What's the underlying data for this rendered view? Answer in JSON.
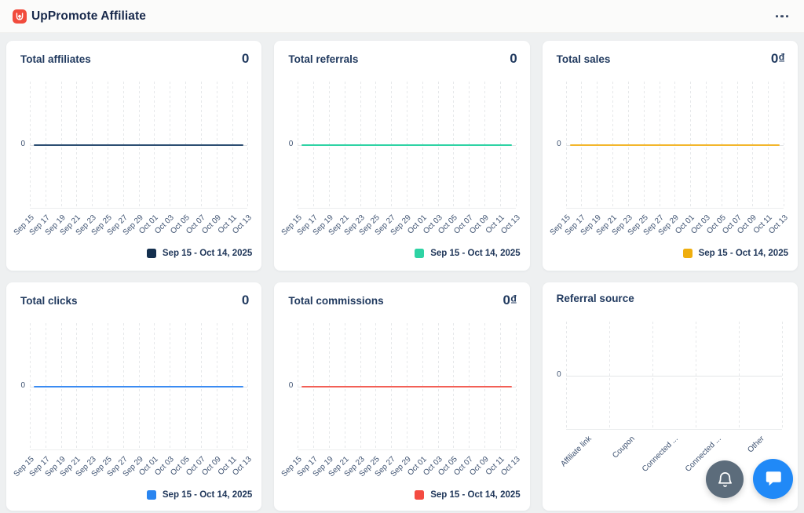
{
  "header": {
    "app_title": "UpPromote Affiliate",
    "logo_icon": "uppromote-logo",
    "logo_color": "#f14b3c",
    "menu_icon": "ellipsis-icon"
  },
  "cards": [
    {
      "title": "Total affiliates",
      "value": "0"
    },
    {
      "title": "Total referrals",
      "value": "0"
    },
    {
      "title": "Total sales",
      "value": "0₫"
    },
    {
      "title": "Total clicks",
      "value": "0"
    },
    {
      "title": "Total commissions",
      "value": "0₫"
    },
    {
      "title": "Referral source",
      "value": ""
    }
  ],
  "chart_data": [
    {
      "type": "line",
      "title": "Total affiliates",
      "x": [
        "Sep 15",
        "Sep 17",
        "Sep 19",
        "Sep 21",
        "Sep 23",
        "Sep 25",
        "Sep 27",
        "Sep 29",
        "Oct 01",
        "Oct 03",
        "Oct 05",
        "Oct 07",
        "Oct 09",
        "Oct 11",
        "Oct 13"
      ],
      "series": [
        {
          "name": "Sep 15 - Oct 14, 2025",
          "values": [
            0,
            0,
            0,
            0,
            0,
            0,
            0,
            0,
            0,
            0,
            0,
            0,
            0,
            0,
            0
          ]
        }
      ],
      "color": "#2c4e72",
      "swatch_color": "#142f4e",
      "y_ticks": [
        "0"
      ],
      "ylim": [
        -1,
        1
      ],
      "grid": "vertical-dashed",
      "legend_position": "bottom-right"
    },
    {
      "type": "line",
      "title": "Total referrals",
      "x": [
        "Sep 15",
        "Sep 17",
        "Sep 19",
        "Sep 21",
        "Sep 23",
        "Sep 25",
        "Sep 27",
        "Sep 29",
        "Oct 01",
        "Oct 03",
        "Oct 05",
        "Oct 07",
        "Oct 09",
        "Oct 11",
        "Oct 13"
      ],
      "series": [
        {
          "name": "Sep 15 - Oct 14, 2025",
          "values": [
            0,
            0,
            0,
            0,
            0,
            0,
            0,
            0,
            0,
            0,
            0,
            0,
            0,
            0,
            0
          ]
        }
      ],
      "color": "#2ed3a4",
      "swatch_color": "#2ed3a4",
      "y_ticks": [
        "0"
      ],
      "ylim": [
        -1,
        1
      ],
      "grid": "vertical-dashed",
      "legend_position": "bottom-right"
    },
    {
      "type": "line",
      "title": "Total sales",
      "x": [
        "Sep 15",
        "Sep 17",
        "Sep 19",
        "Sep 21",
        "Sep 23",
        "Sep 25",
        "Sep 27",
        "Sep 29",
        "Oct 01",
        "Oct 03",
        "Oct 05",
        "Oct 07",
        "Oct 09",
        "Oct 11",
        "Oct 13"
      ],
      "series": [
        {
          "name": "Sep 15 - Oct 14, 2025",
          "values": [
            0,
            0,
            0,
            0,
            0,
            0,
            0,
            0,
            0,
            0,
            0,
            0,
            0,
            0,
            0
          ]
        }
      ],
      "color": "#f3b62c",
      "swatch_color": "#efae0e",
      "y_ticks": [
        "0"
      ],
      "ylim": [
        -1,
        1
      ],
      "grid": "vertical-dashed",
      "legend_position": "bottom-right"
    },
    {
      "type": "line",
      "title": "Total clicks",
      "x": [
        "Sep 15",
        "Sep 17",
        "Sep 19",
        "Sep 21",
        "Sep 23",
        "Sep 25",
        "Sep 27",
        "Sep 29",
        "Oct 01",
        "Oct 03",
        "Oct 05",
        "Oct 07",
        "Oct 09",
        "Oct 11",
        "Oct 13"
      ],
      "series": [
        {
          "name": "Sep 15 - Oct 14, 2025",
          "values": [
            0,
            0,
            0,
            0,
            0,
            0,
            0,
            0,
            0,
            0,
            0,
            0,
            0,
            0,
            0
          ]
        }
      ],
      "color": "#3a8bf2",
      "swatch_color": "#2a85f0",
      "y_ticks": [
        "0"
      ],
      "ylim": [
        -1,
        1
      ],
      "grid": "vertical-dashed",
      "legend_position": "bottom-right"
    },
    {
      "type": "line",
      "title": "Total commissions",
      "x": [
        "Sep 15",
        "Sep 17",
        "Sep 19",
        "Sep 21",
        "Sep 23",
        "Sep 25",
        "Sep 27",
        "Sep 29",
        "Oct 01",
        "Oct 03",
        "Oct 05",
        "Oct 07",
        "Oct 09",
        "Oct 11",
        "Oct 13"
      ],
      "series": [
        {
          "name": "Sep 15 - Oct 14, 2025",
          "values": [
            0,
            0,
            0,
            0,
            0,
            0,
            0,
            0,
            0,
            0,
            0,
            0,
            0,
            0,
            0
          ]
        }
      ],
      "color": "#f25f56",
      "swatch_color": "#f44b41",
      "y_ticks": [
        "0"
      ],
      "ylim": [
        -1,
        1
      ],
      "grid": "vertical-dashed",
      "legend_position": "bottom-right"
    },
    {
      "type": "bar",
      "title": "Referral source",
      "categories": [
        "Affiliate link",
        "Coupon",
        "Connected ...",
        "Connected ...",
        "Other"
      ],
      "values": [
        0,
        0,
        0,
        0,
        0
      ],
      "y_ticks": [
        "0"
      ],
      "ylim": [
        -1,
        1
      ],
      "grid": "vertical-dashed",
      "legend_position": "none"
    }
  ],
  "floating_buttons": {
    "notifications_icon": "bell-icon",
    "chat_icon": "chat-bubble-icon"
  }
}
